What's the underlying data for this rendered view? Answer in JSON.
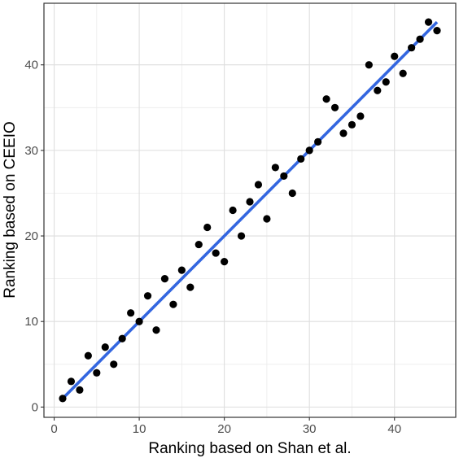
{
  "chart_data": {
    "type": "scatter",
    "title": "",
    "xlabel": "Ranking based on Shan et al.",
    "ylabel": "Ranking based on CEEIO",
    "xlim": [
      -1.2,
      47.2
    ],
    "ylim": [
      -1.2,
      47.2
    ],
    "x_ticks": [
      0,
      10,
      20,
      30,
      40
    ],
    "y_ticks": [
      0,
      10,
      20,
      30,
      40
    ],
    "grid": true,
    "legend": "none",
    "series": [
      {
        "points": [
          [
            1,
            1
          ],
          [
            2,
            3
          ],
          [
            3,
            2
          ],
          [
            4,
            6
          ],
          [
            5,
            4
          ],
          [
            6,
            7
          ],
          [
            7,
            5
          ],
          [
            8,
            8
          ],
          [
            9,
            11
          ],
          [
            10,
            10
          ],
          [
            11,
            13
          ],
          [
            12,
            9
          ],
          [
            13,
            15
          ],
          [
            14,
            12
          ],
          [
            15,
            16
          ],
          [
            16,
            14
          ],
          [
            17,
            19
          ],
          [
            18,
            21
          ],
          [
            19,
            18
          ],
          [
            20,
            17
          ],
          [
            21,
            23
          ],
          [
            22,
            20
          ],
          [
            23,
            24
          ],
          [
            24,
            26
          ],
          [
            25,
            22
          ],
          [
            26,
            28
          ],
          [
            27,
            27
          ],
          [
            28,
            25
          ],
          [
            29,
            29
          ],
          [
            30,
            30
          ],
          [
            31,
            31
          ],
          [
            32,
            36
          ],
          [
            33,
            35
          ],
          [
            34,
            32
          ],
          [
            35,
            33
          ],
          [
            36,
            34
          ],
          [
            37,
            40
          ],
          [
            38,
            37
          ],
          [
            39,
            38
          ],
          [
            40,
            41
          ],
          [
            41,
            39
          ],
          [
            42,
            42
          ],
          [
            43,
            43
          ],
          [
            44,
            45
          ],
          [
            45,
            44
          ]
        ],
        "color": "#000000"
      }
    ],
    "fit_line": {
      "x": [
        1,
        45
      ],
      "y": [
        1,
        45
      ],
      "color": "#3366e0"
    }
  }
}
